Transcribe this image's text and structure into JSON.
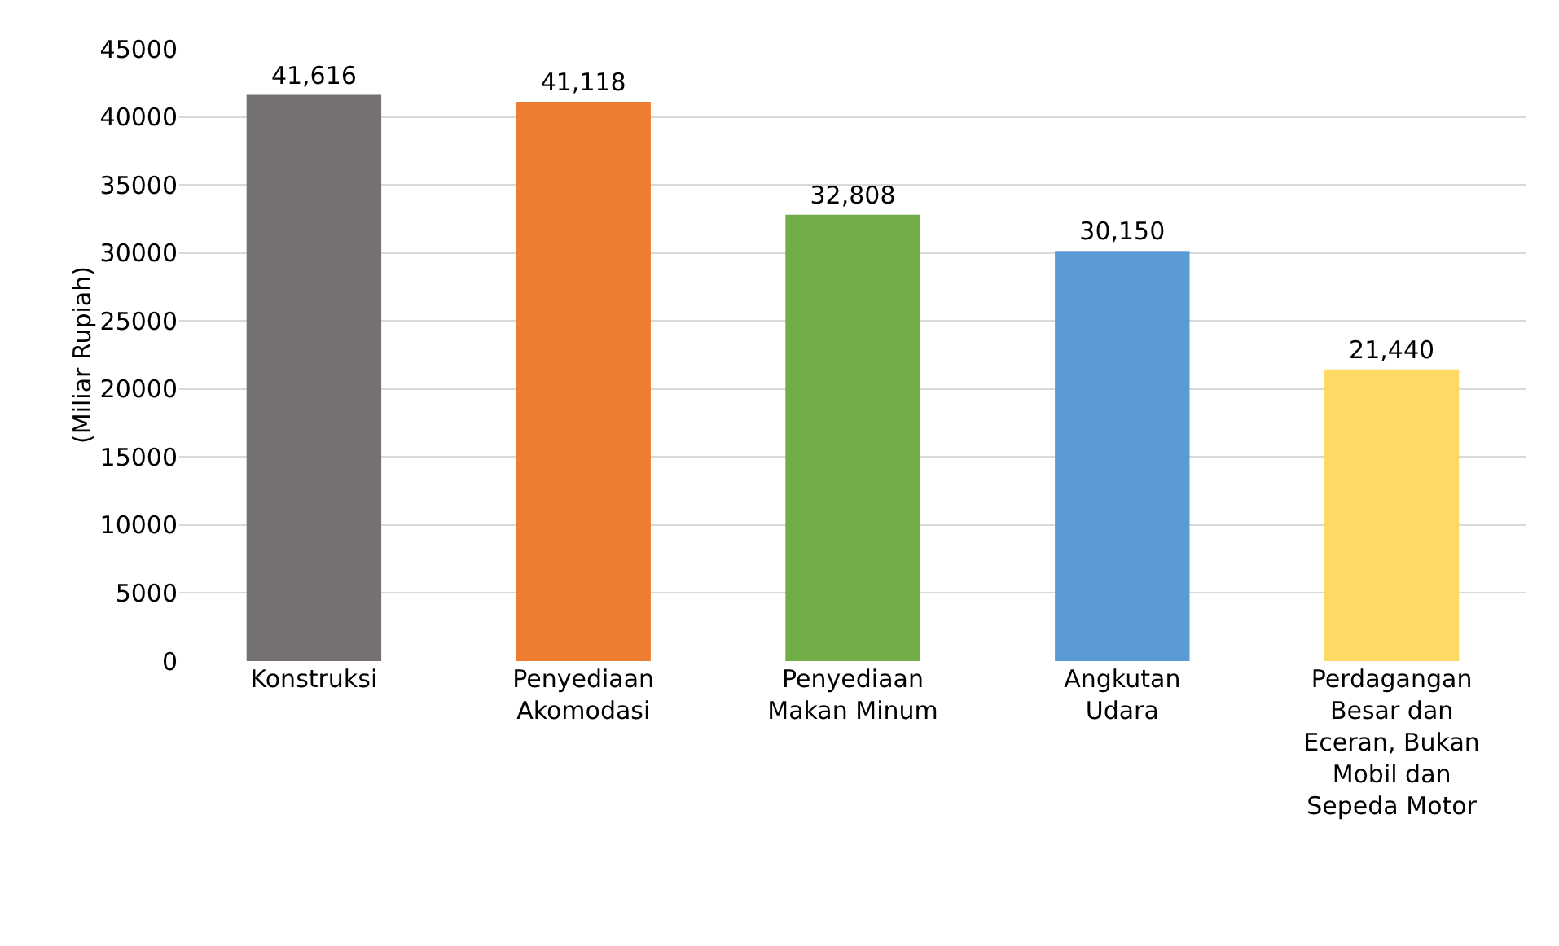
{
  "chart_data": {
    "type": "bar",
    "ylabel": "(Miliar Rupiah)",
    "categories": [
      "Konstruksi",
      "Penyediaan Akomodasi",
      "Penyediaan Makan Minum",
      "Angkutan Udara",
      "Perdagangan Besar dan Eceran, Bukan Mobil dan Sepeda Motor"
    ],
    "values": [
      41616,
      41118,
      32808,
      30150,
      21440
    ],
    "value_labels": [
      "41,616",
      "41,118",
      "32,808",
      "30,150",
      "21,440"
    ],
    "colors": [
      "#767171",
      "#ed7d31",
      "#70ad47",
      "#5b9bd5",
      "#ffd966"
    ],
    "ylim": [
      0,
      45000
    ],
    "yticks": [
      0,
      5000,
      10000,
      15000,
      20000,
      25000,
      30000,
      35000,
      40000,
      45000
    ],
    "grid": "y"
  }
}
